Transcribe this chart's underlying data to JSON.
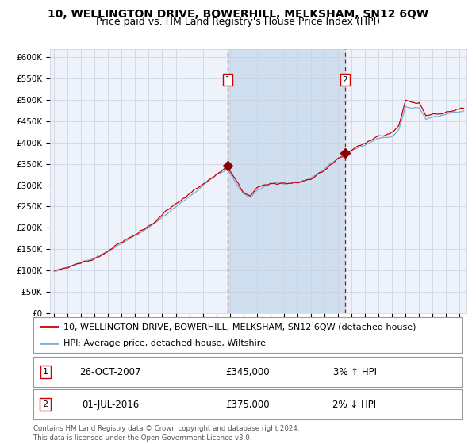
{
  "title": "10, WELLINGTON DRIVE, BOWERHILL, MELKSHAM, SN12 6QW",
  "subtitle": "Price paid vs. HM Land Registry's House Price Index (HPI)",
  "ylim": [
    0,
    620000
  ],
  "yticks": [
    0,
    50000,
    100000,
    150000,
    200000,
    250000,
    300000,
    350000,
    400000,
    450000,
    500000,
    550000,
    600000
  ],
  "xlim_start": 1994.7,
  "xlim_end": 2025.5,
  "background_color": "#ffffff",
  "plot_bg_color": "#eef3fb",
  "grid_color": "#c8d0dc",
  "hpi_line_color": "#7aafd4",
  "price_line_color": "#cc0000",
  "shade_color": "#cfdff0",
  "vline_color": "#cc0000",
  "marker_color": "#8b0000",
  "transaction1_x": 2007.82,
  "transaction1_y": 345000,
  "transaction2_x": 2016.5,
  "transaction2_y": 375000,
  "legend_label1": "10, WELLINGTON DRIVE, BOWERHILL, MELKSHAM, SN12 6QW (detached house)",
  "legend_label2": "HPI: Average price, detached house, Wiltshire",
  "table_row1": [
    "1",
    "26-OCT-2007",
    "£345,000",
    "3% ↑ HPI"
  ],
  "table_row2": [
    "2",
    "01-JUL-2016",
    "£375,000",
    "2% ↓ HPI"
  ],
  "footer": "Contains HM Land Registry data © Crown copyright and database right 2024.\nThis data is licensed under the Open Government Licence v3.0.",
  "title_fontsize": 10,
  "subtitle_fontsize": 9,
  "tick_fontsize": 7.5,
  "legend_fontsize": 8
}
